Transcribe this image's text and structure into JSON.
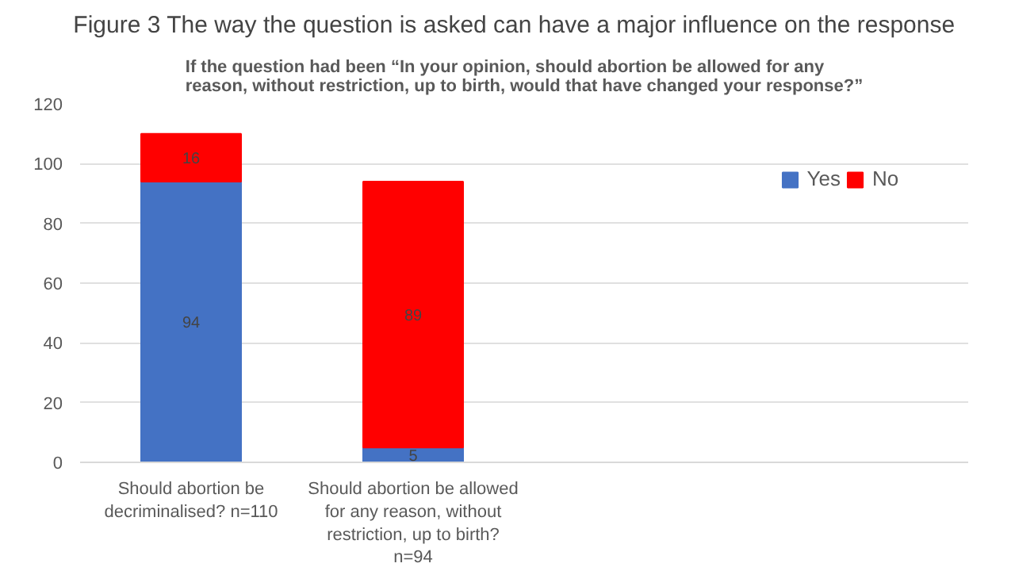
{
  "chart_data": {
    "type": "bar",
    "title": "Figure 3    The way the question is asked can have a major influence on the response",
    "subtitle": "If the question had been “In your opinion, should abortion be allowed for any reason, without restriction, up to birth, would that have changed your response?”",
    "categories": [
      "Should abortion be decriminalised? n=110",
      "Should abortion be allowed for any reason, without restriction, up to birth?  n=94"
    ],
    "stacked": true,
    "series": [
      {
        "name": "Yes",
        "color": "#4472c4",
        "values": [
          94,
          5
        ]
      },
      {
        "name": "No",
        "color": "#ff0000",
        "values": [
          16,
          89
        ]
      }
    ],
    "ylim": [
      0,
      120
    ],
    "yticks": [
      0,
      20,
      40,
      60,
      80,
      100,
      120
    ],
    "grid": "y",
    "legend": "top right",
    "data_labels": true
  }
}
